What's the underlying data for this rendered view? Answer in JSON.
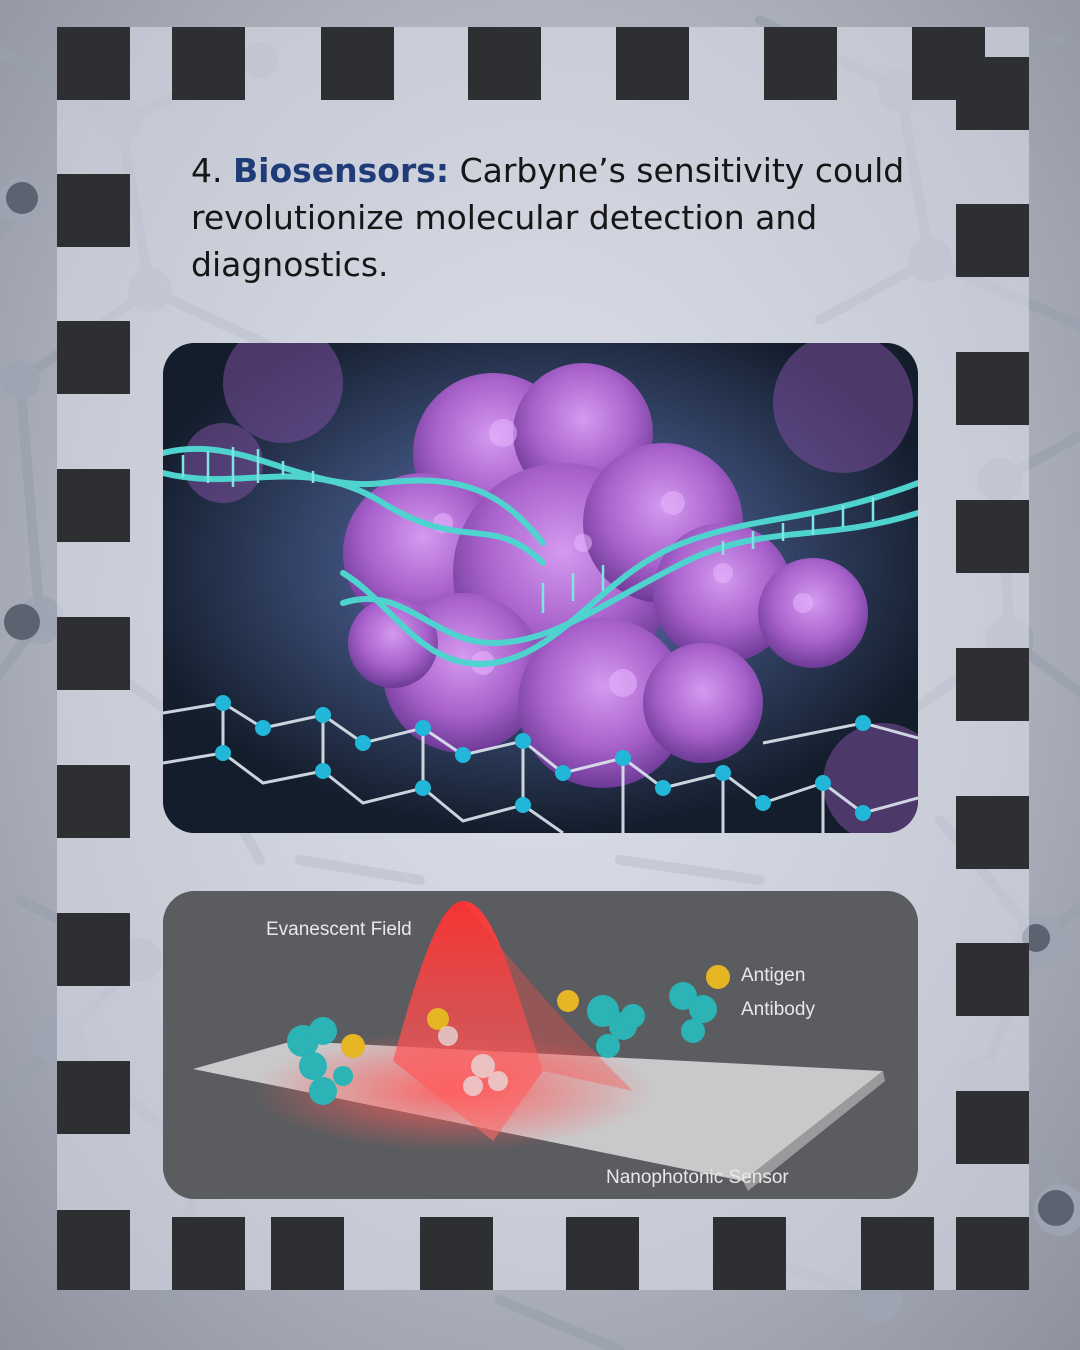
{
  "caption": {
    "number": "4.",
    "highlight": "Biosensors:",
    "text": "Carbyne’s sensitivity could revolutionize molecular detection and diagnostics.",
    "highlight_color": "#1f3c78"
  },
  "images": {
    "protein_dna": {
      "icon": "protein-dna-graphene-illustration"
    },
    "nanophotonic": {
      "icon": "nanophotonic-sensor-illustration",
      "labels": {
        "field": "Evanescent Field",
        "antigen": "Antigen",
        "antibody": "Antibody",
        "sensor": "Nanophotonic Sensor"
      }
    }
  },
  "colors": {
    "frame_squares": "#2e2f33",
    "panel": "#dee2ec",
    "dna": "#4fd3cf",
    "protein": "#b070d8",
    "field": "#ff4a4a"
  }
}
